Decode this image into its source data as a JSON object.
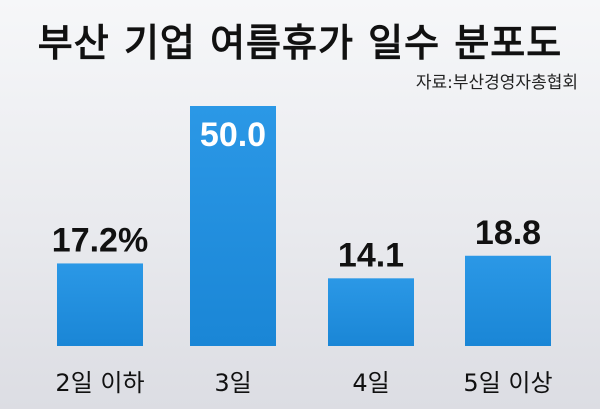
{
  "header": {
    "title": "부산 기업 여름휴가 일수 분포도",
    "source": "자료:부산경영자총협회"
  },
  "colors": {
    "bar": "#1a86d6",
    "bar_top": "#2b98e6"
  },
  "chart_data": {
    "type": "bar",
    "title": "부산 기업 여름휴가 일수 분포도",
    "categories": [
      "2일 이하",
      "3일",
      "4일",
      "5일 이상"
    ],
    "values": [
      17.2,
      50.0,
      14.1,
      18.8
    ],
    "value_labels": [
      "17.2%",
      "50.0",
      "14.1",
      "18.8"
    ],
    "unit": "%",
    "ylim": [
      0,
      50
    ],
    "grid": false,
    "legend": "none"
  }
}
